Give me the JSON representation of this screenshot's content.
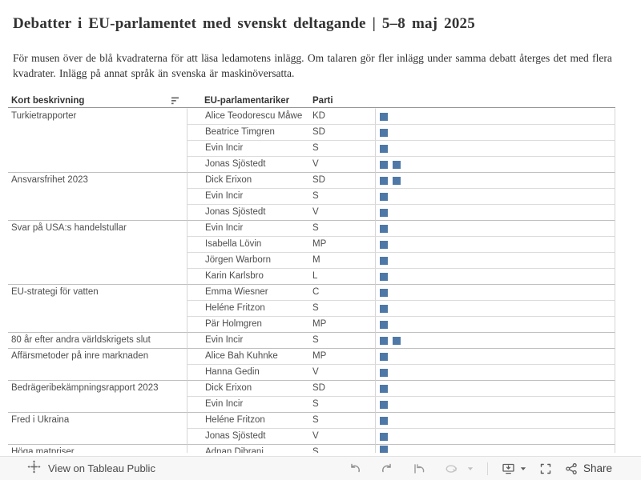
{
  "header": {
    "title": "Debatter i EU-parlamentet med svenskt deltagande | 5–8 maj 2025",
    "description": "För musen över de blå kvadraterna för att läsa ledamotens inlägg. Om talaren gör fler inlägg under samma debatt återges det med flera kvadrater. Inlägg på annat språk än svenska är maskinöversatta."
  },
  "table": {
    "columns": {
      "debate": "Kort beskrivning",
      "mep": "EU-parlamentariker",
      "party": "Parti"
    },
    "square_color": "#4e79a7",
    "groups": [
      {
        "debate": "Turkietrapporter",
        "speakers": [
          {
            "name": "Alice Teodorescu Måwe",
            "party": "KD",
            "squares": 1
          },
          {
            "name": "Beatrice Timgren",
            "party": "SD",
            "squares": 1
          },
          {
            "name": "Evin Incir",
            "party": "S",
            "squares": 1
          },
          {
            "name": "Jonas Sjöstedt",
            "party": "V",
            "squares": 2
          }
        ]
      },
      {
        "debate": "Ansvarsfrihet 2023",
        "speakers": [
          {
            "name": "Dick Erixon",
            "party": "SD",
            "squares": 2
          },
          {
            "name": "Evin Incir",
            "party": "S",
            "squares": 1
          },
          {
            "name": "Jonas Sjöstedt",
            "party": "V",
            "squares": 1
          }
        ]
      },
      {
        "debate": "Svar på USA:s handelstullar",
        "speakers": [
          {
            "name": "Evin Incir",
            "party": "S",
            "squares": 1
          },
          {
            "name": "Isabella Lövin",
            "party": "MP",
            "squares": 1
          },
          {
            "name": "Jörgen Warborn",
            "party": "M",
            "squares": 1
          },
          {
            "name": "Karin Karlsbro",
            "party": "L",
            "squares": 1
          }
        ]
      },
      {
        "debate": "EU-strategi för vatten",
        "speakers": [
          {
            "name": "Emma Wiesner",
            "party": "C",
            "squares": 1
          },
          {
            "name": "Heléne Fritzon",
            "party": "S",
            "squares": 1
          },
          {
            "name": "Pär Holmgren",
            "party": "MP",
            "squares": 1
          }
        ]
      },
      {
        "debate": "80 år efter andra världskrigets slut",
        "speakers": [
          {
            "name": "Evin Incir",
            "party": "S",
            "squares": 2
          }
        ]
      },
      {
        "debate": "Affärsmetoder på inre marknaden",
        "speakers": [
          {
            "name": "Alice Bah Kuhnke",
            "party": "MP",
            "squares": 1
          },
          {
            "name": "Hanna Gedin",
            "party": "V",
            "squares": 1
          }
        ]
      },
      {
        "debate": "Bedrägeribekämpningsrapport 2023",
        "speakers": [
          {
            "name": "Dick Erixon",
            "party": "SD",
            "squares": 1
          },
          {
            "name": "Evin Incir",
            "party": "S",
            "squares": 1
          }
        ]
      },
      {
        "debate": "Fred i Ukraina",
        "speakers": [
          {
            "name": "Heléne Fritzon",
            "party": "S",
            "squares": 1
          },
          {
            "name": "Jonas Sjöstedt",
            "party": "V",
            "squares": 1
          }
        ]
      },
      {
        "debate": "Höga matpriser",
        "clipped": true,
        "speakers": [
          {
            "name": "Adnan Dibrani",
            "party": "S",
            "squares": 1
          }
        ]
      }
    ]
  },
  "toolbar": {
    "view_label": "View on Tableau Public",
    "share_label": "Share"
  }
}
